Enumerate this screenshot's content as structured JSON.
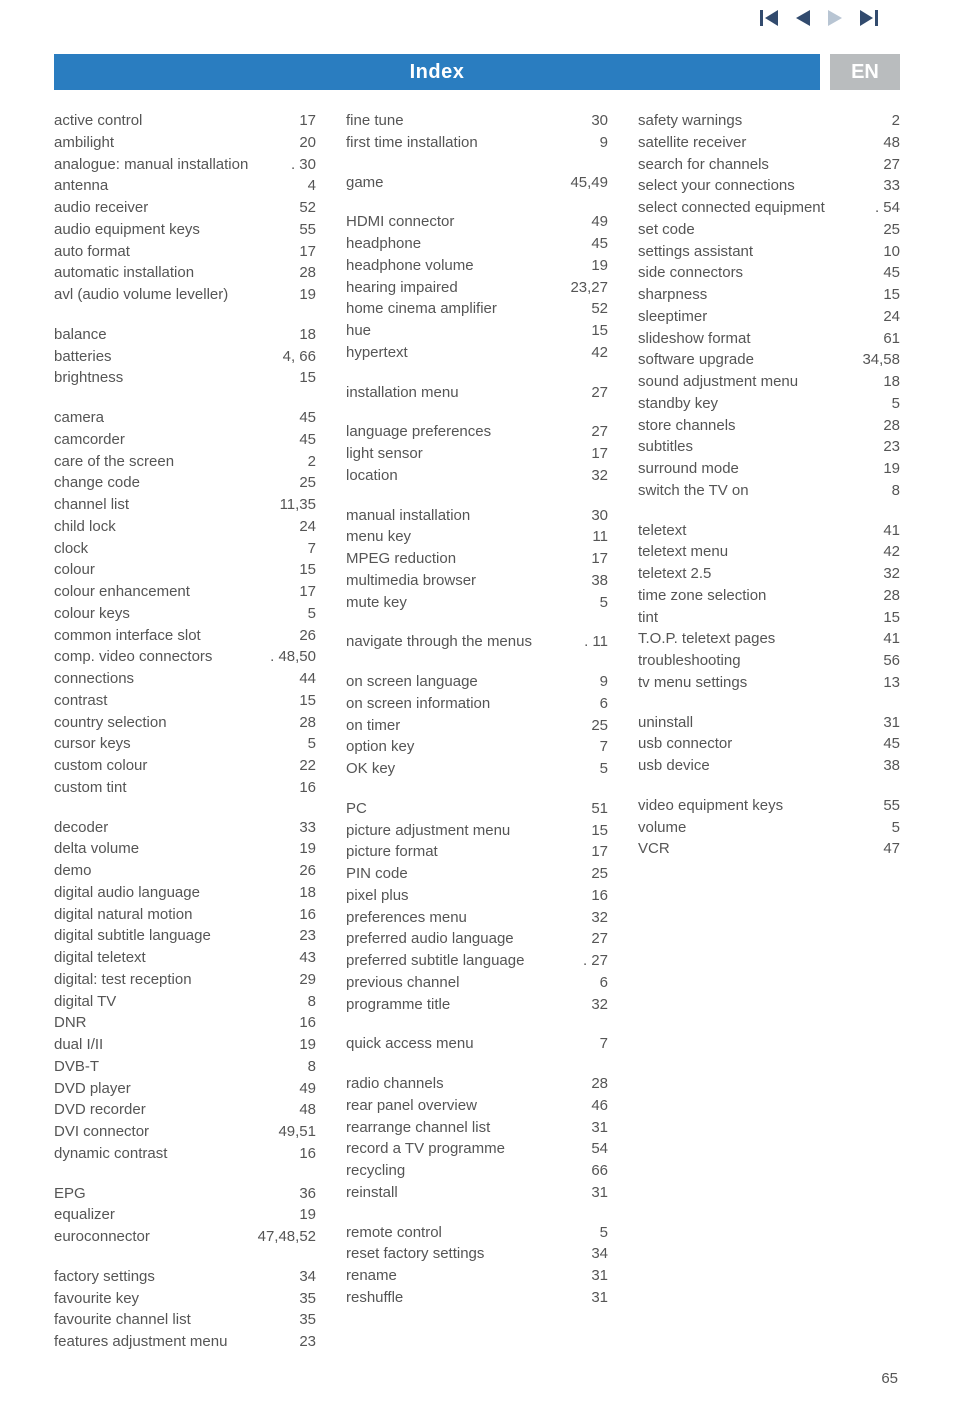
{
  "nav": {
    "arrow_color_active": "#324b6e",
    "arrow_color_inactive": "#b8c5d3"
  },
  "header": {
    "title": "Index",
    "lang": "EN",
    "blue": "#2a7dc0",
    "grey": "#b9bcbe"
  },
  "page_number": "65",
  "columns": [
    [
      [
        {
          "label": "active control",
          "page": "17"
        },
        {
          "label": "ambilight",
          "page": "20"
        },
        {
          "label": "analogue: manual installation",
          "page": "30",
          "nodots": true
        },
        {
          "label": "antenna",
          "page": "4"
        },
        {
          "label": "audio receiver",
          "page": "52"
        },
        {
          "label": "audio equipment keys",
          "page": "55"
        },
        {
          "label": "auto format",
          "page": "17"
        },
        {
          "label": "automatic installation",
          "page": "28"
        },
        {
          "label": "avl (audio volume leveller)",
          "page": "19"
        }
      ],
      [
        {
          "label": "balance",
          "page": "18"
        },
        {
          "label": "batteries",
          "page": "4, 66"
        },
        {
          "label": "brightness",
          "page": "15"
        }
      ],
      [
        {
          "label": "camera",
          "page": "45"
        },
        {
          "label": "camcorder",
          "page": "45"
        },
        {
          "label": "care of the screen",
          "page": "2"
        },
        {
          "label": "change code",
          "page": "25"
        },
        {
          "label": "channel list",
          "page": "11,35"
        },
        {
          "label": "child lock",
          "page": "24"
        },
        {
          "label": "clock",
          "page": "7"
        },
        {
          "label": "colour",
          "page": "15"
        },
        {
          "label": "colour enhancement",
          "page": "17"
        },
        {
          "label": "colour keys",
          "page": "5"
        },
        {
          "label": "common interface slot",
          "page": "26"
        },
        {
          "label": "comp. video connectors",
          "page": "48,50",
          "nodots": true
        },
        {
          "label": "connections",
          "page": "44"
        },
        {
          "label": "contrast",
          "page": "15"
        },
        {
          "label": "country selection",
          "page": "28"
        },
        {
          "label": "cursor keys",
          "page": "5"
        },
        {
          "label": "custom colour",
          "page": "22"
        },
        {
          "label": "custom tint",
          "page": "16"
        }
      ],
      [
        {
          "label": "decoder",
          "page": "33"
        },
        {
          "label": "delta volume",
          "page": "19"
        },
        {
          "label": "demo",
          "page": "26"
        },
        {
          "label": "digital audio language",
          "page": "18"
        },
        {
          "label": "digital natural motion",
          "page": "16"
        },
        {
          "label": "digital subtitle language",
          "page": "23"
        },
        {
          "label": "digital teletext",
          "page": "43"
        },
        {
          "label": "digital: test reception",
          "page": "29"
        },
        {
          "label": "digital TV",
          "page": "8"
        },
        {
          "label": "DNR",
          "page": "16"
        },
        {
          "label": "dual I/II",
          "page": "19"
        },
        {
          "label": "DVB-T",
          "page": "8"
        },
        {
          "label": "DVD player",
          "page": "49"
        },
        {
          "label": "DVD recorder",
          "page": "48"
        },
        {
          "label": "DVI connector",
          "page": "49,51"
        },
        {
          "label": "dynamic contrast",
          "page": "16"
        }
      ],
      [
        {
          "label": "EPG",
          "page": "36"
        },
        {
          "label": "equalizer",
          "page": "19"
        },
        {
          "label": "euroconnector",
          "page": "47,48,52"
        }
      ],
      [
        {
          "label": "factory settings",
          "page": "34"
        },
        {
          "label": "favourite key",
          "page": "35"
        },
        {
          "label": "favourite channel list",
          "page": "35"
        },
        {
          "label": "features adjustment menu",
          "page": "23"
        }
      ]
    ],
    [
      [
        {
          "label": "fine tune",
          "page": "30"
        },
        {
          "label": "first time installation",
          "page": "9"
        }
      ],
      [
        {
          "label": "game",
          "page": "45,49"
        }
      ],
      [
        {
          "label": "HDMI connector",
          "page": "49"
        },
        {
          "label": "headphone",
          "page": "45"
        },
        {
          "label": "headphone volume",
          "page": "19"
        },
        {
          "label": "hearing impaired",
          "page": "23,27"
        },
        {
          "label": "home cinema amplifier",
          "page": "52"
        },
        {
          "label": "hue",
          "page": "15"
        },
        {
          "label": "hypertext",
          "page": "42"
        }
      ],
      [
        {
          "label": "installation menu",
          "page": "27"
        }
      ],
      [
        {
          "label": "language preferences",
          "page": "27"
        },
        {
          "label": "light sensor",
          "page": "17"
        },
        {
          "label": "location",
          "page": "32"
        }
      ],
      [
        {
          "label": "manual installation",
          "page": "30"
        },
        {
          "label": "menu key",
          "page": "11"
        },
        {
          "label": "MPEG reduction",
          "page": "17"
        },
        {
          "label": "multimedia browser",
          "page": "38"
        },
        {
          "label": "mute key",
          "page": "5"
        }
      ],
      [
        {
          "label": "navigate through the menus",
          "page": "11",
          "nodots": true
        }
      ],
      [
        {
          "label": "on screen language",
          "page": "9"
        },
        {
          "label": "on screen information",
          "page": "6"
        },
        {
          "label": "on timer",
          "page": "25"
        },
        {
          "label": "option key",
          "page": "7"
        },
        {
          "label": "OK key",
          "page": "5"
        }
      ],
      [
        {
          "label": "PC",
          "page": "51"
        },
        {
          "label": "picture adjustment menu",
          "page": "15"
        },
        {
          "label": "picture format",
          "page": "17"
        },
        {
          "label": "PIN code",
          "page": "25"
        },
        {
          "label": "pixel plus",
          "page": "16"
        },
        {
          "label": "preferences menu",
          "page": "32"
        },
        {
          "label": "preferred audio language",
          "page": "27"
        },
        {
          "label": "preferred subtitle language",
          "page": "27",
          "nodots": true
        },
        {
          "label": "previous channel",
          "page": "6"
        },
        {
          "label": "programme title",
          "page": "32"
        }
      ],
      [
        {
          "label": "quick access menu",
          "page": "7"
        }
      ],
      [
        {
          "label": "radio channels",
          "page": "28"
        },
        {
          "label": "rear panel overview",
          "page": "46"
        },
        {
          "label": "rearrange channel list",
          "page": "31"
        },
        {
          "label": "record a TV programme",
          "page": "54"
        },
        {
          "label": "recycling",
          "page": "66"
        },
        {
          "label": "reinstall",
          "page": "31"
        }
      ],
      [
        {
          "label": "remote control",
          "page": "5"
        },
        {
          "label": "reset factory settings",
          "page": "34"
        },
        {
          "label": "rename",
          "page": "31"
        },
        {
          "label": "reshuffle",
          "page": "31"
        }
      ]
    ],
    [
      [
        {
          "label": "safety warnings",
          "page": "2"
        },
        {
          "label": "satellite receiver",
          "page": "48"
        },
        {
          "label": "search for channels",
          "page": "27"
        },
        {
          "label": "select your connections",
          "page": "33"
        },
        {
          "label": "select connected equipment",
          "page": "54",
          "nodots": true
        },
        {
          "label": "set code",
          "page": "25"
        },
        {
          "label": "settings assistant",
          "page": "10"
        },
        {
          "label": "side connectors",
          "page": "45"
        },
        {
          "label": "sharpness",
          "page": "15"
        },
        {
          "label": "sleeptimer",
          "page": "24"
        },
        {
          "label": "slideshow format",
          "page": "61"
        },
        {
          "label": "software upgrade",
          "page": "34,58"
        },
        {
          "label": "sound adjustment menu",
          "page": "18"
        },
        {
          "label": "standby key",
          "page": "5"
        },
        {
          "label": "store channels",
          "page": "28"
        },
        {
          "label": "subtitles",
          "page": "23"
        },
        {
          "label": "surround mode",
          "page": "19"
        },
        {
          "label": "switch the TV on",
          "page": "8"
        }
      ],
      [
        {
          "label": "teletext",
          "page": "41"
        },
        {
          "label": "teletext menu",
          "page": "42"
        },
        {
          "label": "teletext 2.5",
          "page": "32"
        },
        {
          "label": "time zone selection",
          "page": "28"
        },
        {
          "label": "tint",
          "page": "15"
        },
        {
          "label": "T.O.P. teletext pages",
          "page": "41"
        },
        {
          "label": "troubleshooting",
          "page": "56"
        },
        {
          "label": "tv menu settings",
          "page": "13"
        }
      ],
      [
        {
          "label": "uninstall",
          "page": "31"
        },
        {
          "label": "usb connector",
          "page": "45"
        },
        {
          "label": "usb device",
          "page": "38"
        }
      ],
      [
        {
          "label": "video equipment keys",
          "page": "55"
        },
        {
          "label": "volume",
          "page": "5"
        },
        {
          "label": "VCR",
          "page": "47"
        }
      ]
    ]
  ]
}
